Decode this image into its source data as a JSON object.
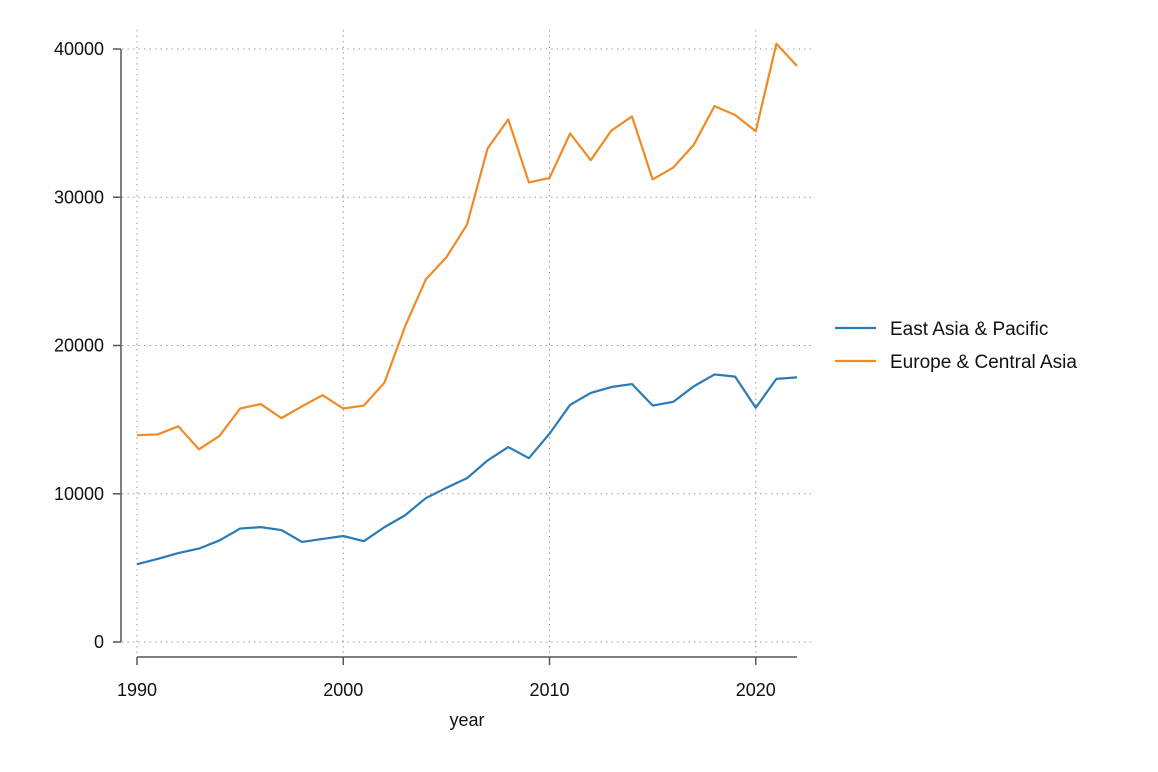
{
  "chart_data": {
    "type": "line",
    "title": "",
    "xlabel": "year",
    "ylabel": "",
    "xlim": [
      1990,
      2022
    ],
    "ylim": [
      0,
      40000
    ],
    "x_ticks": [
      1990,
      2000,
      2010,
      2020
    ],
    "y_ticks": [
      0,
      10000,
      20000,
      30000,
      40000
    ],
    "grid": true,
    "legend_position": "right",
    "x": [
      1990,
      1991,
      1992,
      1993,
      1994,
      1995,
      1996,
      1997,
      1998,
      1999,
      2000,
      2001,
      2002,
      2003,
      2004,
      2005,
      2006,
      2007,
      2008,
      2009,
      2010,
      2011,
      2012,
      2013,
      2014,
      2015,
      2016,
      2017,
      2018,
      2019,
      2020,
      2021,
      2022
    ],
    "series": [
      {
        "name": "East Asia & Pacific",
        "color": "#2a7ab6",
        "values": [
          5250,
          5600,
          6000,
          6300,
          6850,
          7650,
          7750,
          7550,
          6750,
          6950,
          7150,
          6800,
          7750,
          8550,
          9700,
          10400,
          11050,
          12250,
          13150,
          12400,
          14050,
          16000,
          16800,
          17200,
          17400,
          15950,
          16200,
          17250,
          18050,
          17900,
          15800,
          17750,
          17850
        ]
      },
      {
        "name": "Europe & Central Asia",
        "color": "#f08a24",
        "values": [
          13950,
          14000,
          14550,
          13000,
          13900,
          15750,
          16050,
          15100,
          15900,
          16650,
          15750,
          15950,
          17500,
          21300,
          24450,
          25950,
          28150,
          33300,
          35250,
          31000,
          31300,
          34300,
          32500,
          34500,
          35450,
          31200,
          32000,
          33550,
          36150,
          35550,
          34450,
          40350,
          38850
        ]
      }
    ]
  }
}
